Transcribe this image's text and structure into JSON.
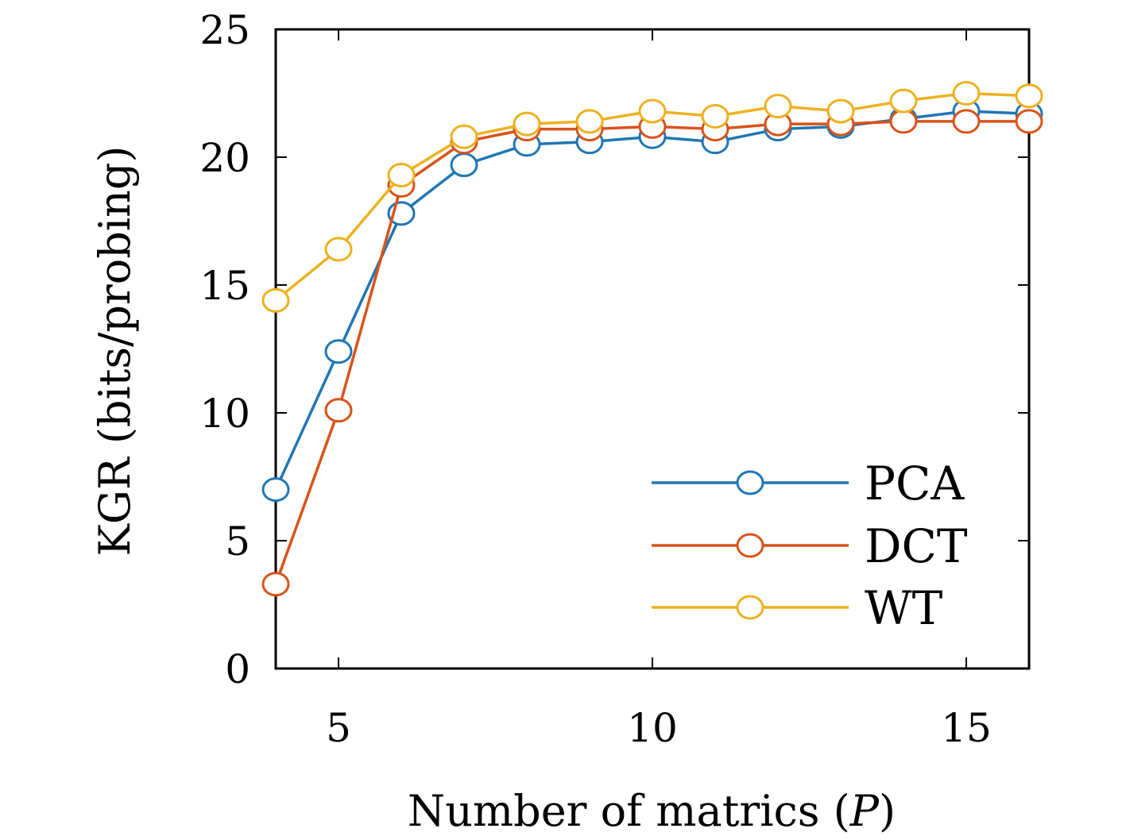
{
  "chart_data": {
    "type": "line",
    "xlabel_prefix": "Number of matrics (",
    "xlabel_var": "P",
    "xlabel_suffix": ")",
    "ylabel": "KGR (bits/probing)",
    "xlim": [
      4,
      16
    ],
    "ylim": [
      0,
      25
    ],
    "xticks": [
      5,
      10,
      15
    ],
    "yticks": [
      0,
      5,
      10,
      15,
      20,
      25
    ],
    "grid": false,
    "legend_position": "bottom-right",
    "x": [
      4,
      5,
      6,
      7,
      8,
      9,
      10,
      11,
      12,
      13,
      14,
      15,
      16
    ],
    "series": [
      {
        "name": "PCA",
        "color": "#1f77b4",
        "values": [
          7.0,
          12.4,
          17.8,
          19.7,
          20.5,
          20.6,
          20.8,
          20.6,
          21.1,
          21.2,
          21.5,
          21.8,
          21.7
        ]
      },
      {
        "name": "DCT",
        "color": "#d95319",
        "values": [
          3.3,
          10.1,
          18.9,
          20.6,
          21.1,
          21.1,
          21.2,
          21.1,
          21.3,
          21.3,
          21.4,
          21.4,
          21.4
        ]
      },
      {
        "name": "WT",
        "color": "#edb120",
        "values": [
          14.4,
          16.4,
          19.3,
          20.8,
          21.3,
          21.4,
          21.8,
          21.6,
          22.0,
          21.8,
          22.2,
          22.5,
          22.4
        ]
      }
    ]
  }
}
